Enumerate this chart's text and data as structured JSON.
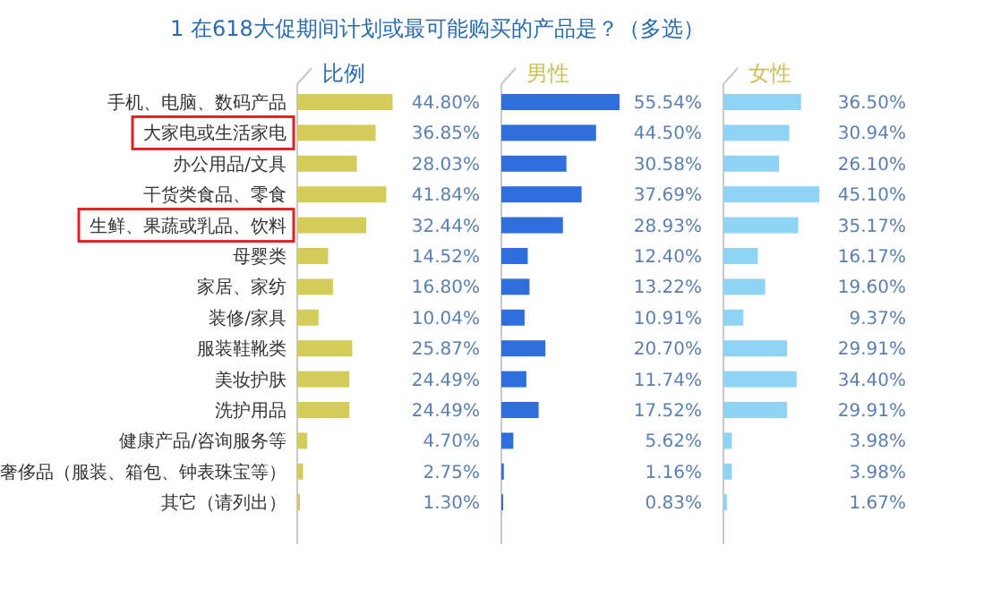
{
  "chart_data": [
    {
      "type": "bar",
      "orientation": "horizontal",
      "title": "1  在618大促期间计划或最可能购买的产品是？（多选）",
      "subtitle": "比例",
      "color": "#d4cc5a",
      "categories": [
        "手机、电脑、数码产品",
        "大家电或生活家电",
        "办公用品/文具",
        "干货类食品、零食",
        "生鲜、果蔬或乳品、饮料",
        "母婴类",
        "家居、家纺",
        "装修/家具",
        "服装鞋靴类",
        "美妆护肤",
        "洗护用品",
        "健康产品/咨询服务等",
        "奢侈品（服装、箱包、钟表珠宝等）",
        "其它（请列出）"
      ],
      "values": [
        44.8,
        36.85,
        28.03,
        41.84,
        32.44,
        14.52,
        16.8,
        10.04,
        25.87,
        24.49,
        24.49,
        4.7,
        2.75,
        1.3
      ],
      "value_labels": [
        "44.80%",
        "36.85%",
        "28.03%",
        "41.84%",
        "32.44%",
        "14.52%",
        "16.80%",
        "10.04%",
        "25.87%",
        "24.49%",
        "24.49%",
        "4.70%",
        "2.75%",
        "1.30%"
      ]
    },
    {
      "type": "bar",
      "orientation": "horizontal",
      "subtitle": "男性",
      "color": "#2f6fdc",
      "values": [
        55.54,
        44.5,
        30.58,
        37.69,
        28.93,
        12.4,
        13.22,
        10.91,
        20.7,
        11.74,
        17.52,
        5.62,
        1.16,
        0.83
      ],
      "value_labels": [
        "55.54%",
        "44.50%",
        "30.58%",
        "37.69%",
        "28.93%",
        "12.40%",
        "13.22%",
        "10.91%",
        "20.70%",
        "11.74%",
        "17.52%",
        "5.62%",
        "1.16%",
        "0.83%"
      ]
    },
    {
      "type": "bar",
      "orientation": "horizontal",
      "subtitle": "女性",
      "color": "#8fd3f5",
      "values": [
        36.5,
        30.94,
        26.1,
        45.1,
        35.17,
        16.17,
        19.6,
        9.37,
        29.91,
        34.4,
        29.91,
        3.98,
        3.98,
        1.67
      ],
      "value_labels": [
        "36.50%",
        "30.94%",
        "26.10%",
        "45.10%",
        "35.17%",
        "16.17%",
        "19.60%",
        "9.37%",
        "29.91%",
        "34.40%",
        "29.91%",
        "3.98%",
        "3.98%",
        "1.67%"
      ]
    }
  ]
}
